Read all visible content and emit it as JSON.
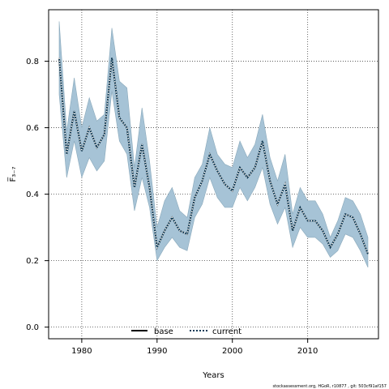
{
  "chart_data": {
    "type": "line",
    "xlabel": "Years",
    "ylabel": "F̅₃₋₇",
    "xlim": [
      1975.6,
      2019.4
    ],
    "ylim": [
      -0.035,
      0.955
    ],
    "x_ticks": [
      1980,
      1990,
      2000,
      2010
    ],
    "y_ticks": [
      0.0,
      0.2,
      0.4,
      0.6,
      0.8
    ],
    "y_tick_labels": [
      "0.0",
      "0.2",
      "0.4",
      "0.6",
      "0.8"
    ],
    "grid": true,
    "legend_position": "bottom-center",
    "footnote": "stockassessment.org, HGoR, r10877 , git: 503cf91af157",
    "colors": {
      "band_fill": "#a6c3d6",
      "band_edge": "#8aa9bb",
      "base_line": "#000000",
      "current_line": "#0b3a57",
      "grid": "#444444"
    },
    "x": [
      1977,
      1978,
      1979,
      1980,
      1981,
      1982,
      1983,
      1984,
      1985,
      1986,
      1987,
      1988,
      1989,
      1990,
      1991,
      1992,
      1993,
      1994,
      1995,
      1996,
      1997,
      1998,
      1999,
      2000,
      2001,
      2002,
      2003,
      2004,
      2005,
      2006,
      2007,
      2008,
      2009,
      2010,
      2011,
      2012,
      2013,
      2014,
      2015,
      2016,
      2017,
      2018
    ],
    "series": [
      {
        "name": "base",
        "style": "solid",
        "values": [
          0.81,
          0.52,
          0.65,
          0.53,
          0.6,
          0.54,
          0.58,
          0.81,
          0.63,
          0.6,
          0.42,
          0.55,
          0.42,
          0.24,
          0.29,
          0.33,
          0.29,
          0.28,
          0.39,
          0.44,
          0.52,
          0.47,
          0.43,
          0.41,
          0.48,
          0.45,
          0.48,
          0.56,
          0.44,
          0.37,
          0.43,
          0.29,
          0.36,
          0.32,
          0.32,
          0.29,
          0.24,
          0.28,
          0.34,
          0.33,
          0.28,
          0.22
        ]
      },
      {
        "name": "current",
        "style": "dotted",
        "values": [
          0.81,
          0.52,
          0.65,
          0.53,
          0.6,
          0.54,
          0.58,
          0.81,
          0.63,
          0.6,
          0.42,
          0.55,
          0.42,
          0.24,
          0.29,
          0.33,
          0.29,
          0.28,
          0.39,
          0.44,
          0.52,
          0.47,
          0.43,
          0.41,
          0.48,
          0.45,
          0.48,
          0.56,
          0.44,
          0.37,
          0.43,
          0.29,
          0.36,
          0.32,
          0.32,
          0.29,
          0.24,
          0.28,
          0.34,
          0.33,
          0.28,
          0.22
        ]
      }
    ],
    "band": {
      "upper": [
        0.92,
        0.59,
        0.75,
        0.6,
        0.69,
        0.62,
        0.64,
        0.9,
        0.74,
        0.72,
        0.48,
        0.66,
        0.5,
        0.3,
        0.38,
        0.42,
        0.35,
        0.33,
        0.45,
        0.49,
        0.6,
        0.52,
        0.49,
        0.48,
        0.56,
        0.51,
        0.55,
        0.64,
        0.51,
        0.44,
        0.52,
        0.34,
        0.42,
        0.38,
        0.38,
        0.34,
        0.27,
        0.32,
        0.39,
        0.38,
        0.34,
        0.27
      ],
      "lower": [
        0.7,
        0.45,
        0.56,
        0.45,
        0.51,
        0.47,
        0.5,
        0.71,
        0.56,
        0.52,
        0.35,
        0.45,
        0.36,
        0.2,
        0.24,
        0.27,
        0.24,
        0.23,
        0.33,
        0.37,
        0.45,
        0.39,
        0.36,
        0.36,
        0.42,
        0.38,
        0.42,
        0.48,
        0.37,
        0.31,
        0.36,
        0.24,
        0.3,
        0.27,
        0.27,
        0.25,
        0.21,
        0.23,
        0.28,
        0.27,
        0.23,
        0.18
      ]
    }
  }
}
